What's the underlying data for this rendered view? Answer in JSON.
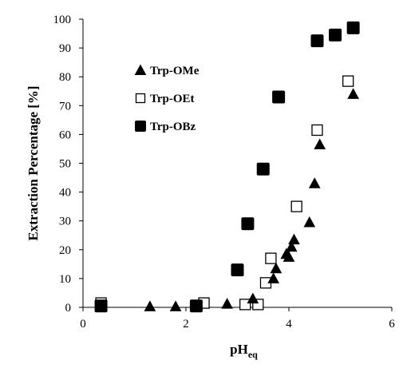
{
  "chart_data": {
    "type": "scatter",
    "xlabel": "pH",
    "xlabel_sub": "eq",
    "ylabel": "Extraction Percentage [%]",
    "xlim": [
      0,
      6
    ],
    "ylim": [
      0,
      100
    ],
    "xticks": [
      0,
      2,
      4,
      6
    ],
    "yticks": [
      0,
      10,
      20,
      30,
      40,
      50,
      60,
      70,
      80,
      90,
      100
    ],
    "grid": false,
    "legend_position": "upper-left",
    "series": [
      {
        "name": "Trp-OMe",
        "marker": "filled-triangle",
        "color": "#000000",
        "points": [
          [
            1.3,
            0.3
          ],
          [
            1.8,
            0.3
          ],
          [
            2.2,
            0.3
          ],
          [
            2.8,
            1.2
          ],
          [
            3.3,
            3.0
          ],
          [
            3.7,
            10.0
          ],
          [
            3.75,
            13.5
          ],
          [
            3.95,
            18.5
          ],
          [
            4.0,
            17.5
          ],
          [
            4.05,
            21.0
          ],
          [
            4.1,
            23.5
          ],
          [
            4.4,
            29.5
          ],
          [
            4.5,
            43.0
          ],
          [
            4.6,
            56.5
          ],
          [
            5.25,
            74.0
          ]
        ]
      },
      {
        "name": "Trp-OEt",
        "marker": "open-square",
        "color": "#000000",
        "points": [
          [
            0.35,
            1.5
          ],
          [
            2.35,
            1.5
          ],
          [
            3.15,
            1.0
          ],
          [
            3.4,
            1.0
          ],
          [
            3.55,
            8.5
          ],
          [
            3.65,
            17.0
          ],
          [
            4.15,
            35.0
          ],
          [
            4.55,
            61.5
          ],
          [
            5.15,
            78.5
          ]
        ]
      },
      {
        "name": "Trp-OBz",
        "marker": "filled-square",
        "color": "#000000",
        "points": [
          [
            0.35,
            0.5
          ],
          [
            2.2,
            0.5
          ],
          [
            3.0,
            13.0
          ],
          [
            3.2,
            29.0
          ],
          [
            3.5,
            48.0
          ],
          [
            3.8,
            73.0
          ],
          [
            4.55,
            92.5
          ],
          [
            4.9,
            94.5
          ],
          [
            5.25,
            97.0
          ]
        ]
      }
    ]
  }
}
